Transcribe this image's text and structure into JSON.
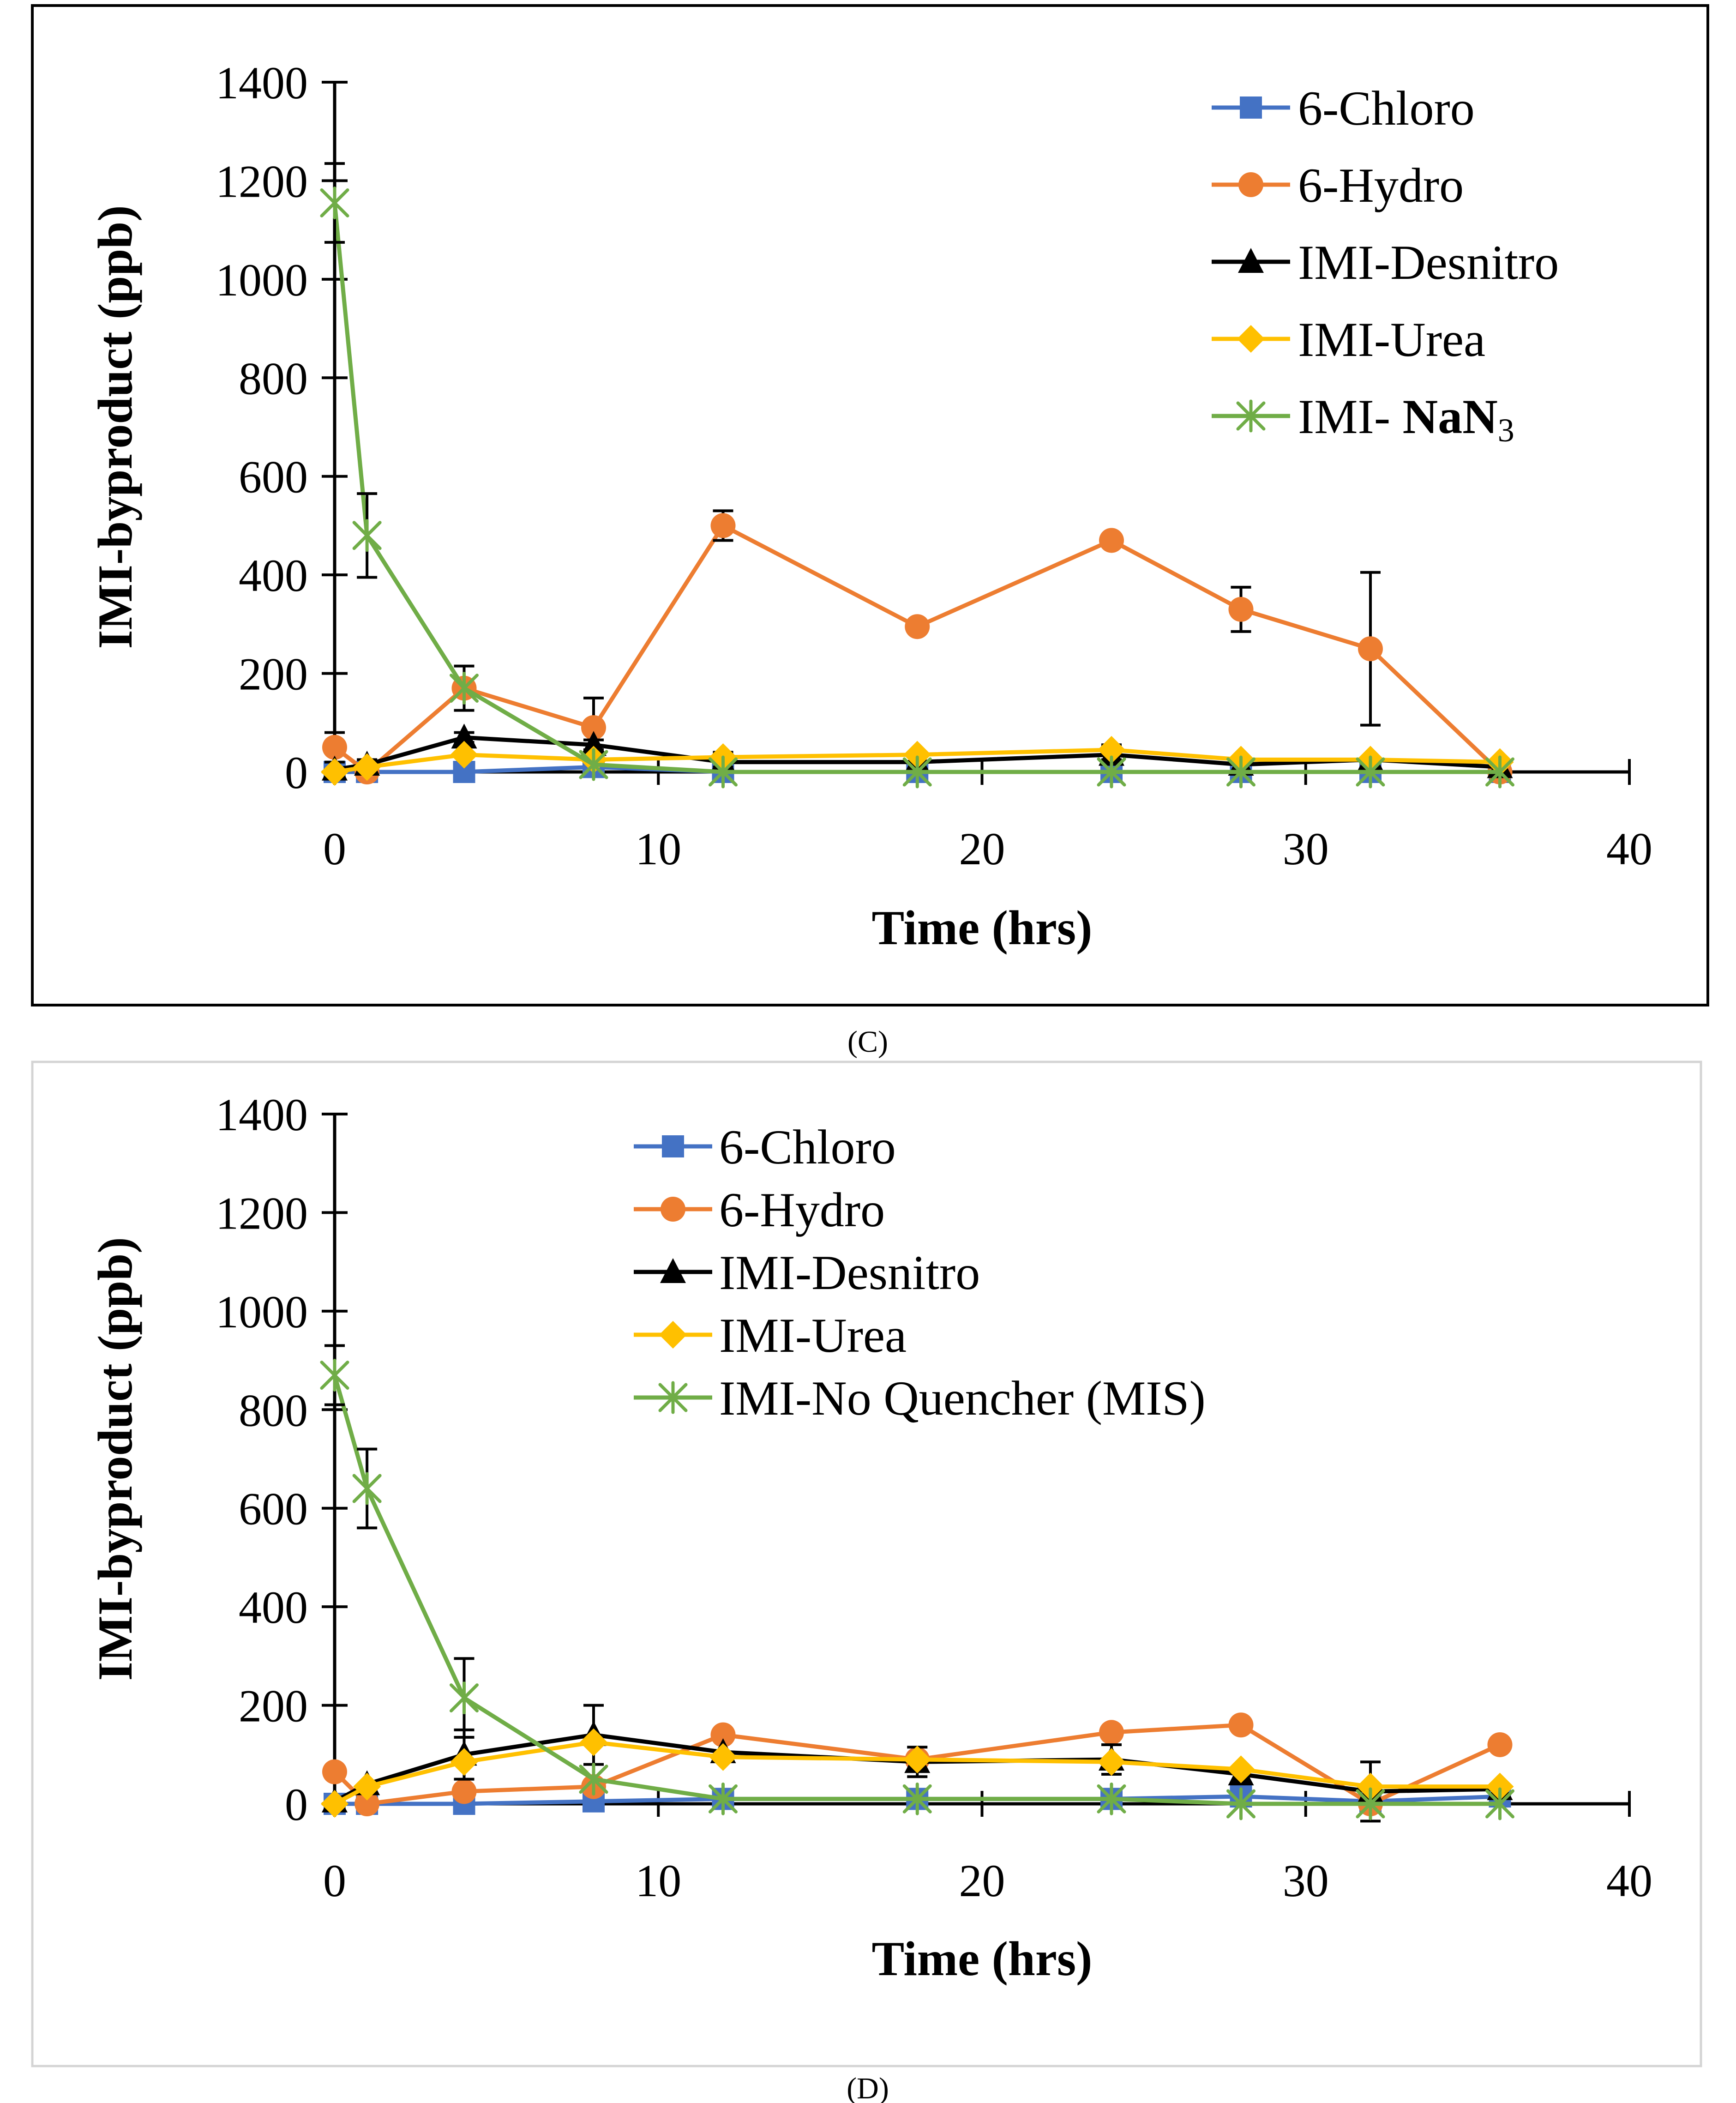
{
  "colors": {
    "6-Chloro": "#4472C4",
    "6-Hydro": "#ED7D31",
    "IMI-Desnitro": "#000000",
    "IMI-Urea": "#FFC000",
    "IMI-Quencher": "#70AD47",
    "error_bar": "#000000"
  },
  "chart_data": [
    {
      "type": "line",
      "panel_label": "(C)",
      "panel_letter": "C",
      "xlabel": "Time (hrs)",
      "ylabel": "IMI-byproduct (ppb)",
      "xlim": [
        0,
        40
      ],
      "ylim": [
        0,
        1400
      ],
      "xticks": [
        0,
        10,
        20,
        30,
        40
      ],
      "yticks": [
        0,
        200,
        400,
        600,
        800,
        1000,
        1200,
        1400
      ],
      "legend_position": "top-right",
      "x": [
        0,
        1,
        4,
        8,
        12,
        18,
        24,
        28,
        32,
        36
      ],
      "series": [
        {
          "name": "6-Chloro",
          "marker": "square",
          "color": "#4472C4",
          "values": [
            0,
            0,
            0,
            10,
            0,
            0,
            0,
            0,
            0,
            0
          ],
          "errors": [
            0,
            0,
            0,
            0,
            0,
            0,
            0,
            0,
            0,
            0
          ]
        },
        {
          "name": "6-Hydro",
          "marker": "circle",
          "color": "#ED7D31",
          "values": [
            50,
            0,
            170,
            90,
            500,
            295,
            470,
            330,
            250,
            0
          ],
          "errors": [
            30,
            0,
            45,
            60,
            30,
            0,
            0,
            45,
            155,
            0
          ]
        },
        {
          "name": "IMI-Desnitro",
          "marker": "triangle",
          "color": "#000000",
          "values": [
            5,
            15,
            70,
            55,
            20,
            20,
            35,
            15,
            25,
            10
          ],
          "errors": [
            0,
            10,
            10,
            10,
            10,
            0,
            10,
            0,
            0,
            0
          ]
        },
        {
          "name": "IMI-Urea",
          "marker": "diamond",
          "color": "#FFC000",
          "values": [
            0,
            10,
            35,
            25,
            30,
            35,
            45,
            25,
            25,
            20
          ],
          "errors": [
            0,
            0,
            0,
            0,
            10,
            0,
            10,
            0,
            0,
            0
          ]
        },
        {
          "name": "IMI- NaN3",
          "legend_prefix": "IMI- ",
          "legend_main": "NaN",
          "legend_sub": "3",
          "marker": "star",
          "color": "#70AD47",
          "values": [
            1155,
            480,
            170,
            15,
            0,
            0,
            0,
            0,
            0,
            0
          ],
          "errors": [
            80,
            85,
            0,
            0,
            0,
            0,
            0,
            0,
            0,
            0
          ]
        }
      ]
    },
    {
      "type": "line",
      "panel_label": "(D)",
      "panel_letter": "D",
      "xlabel": "Time (hrs)",
      "ylabel": "IMI-byproduct (ppb)",
      "xlim": [
        0,
        40
      ],
      "ylim": [
        0,
        1400
      ],
      "xticks": [
        0,
        10,
        20,
        30,
        40
      ],
      "yticks": [
        0,
        200,
        400,
        600,
        800,
        1000,
        1200,
        1400
      ],
      "legend_position": "top-center",
      "x": [
        0,
        1,
        4,
        8,
        12,
        18,
        24,
        28,
        32,
        36
      ],
      "series": [
        {
          "name": "6-Chloro",
          "marker": "square",
          "color": "#4472C4",
          "values": [
            0,
            0,
            0,
            5,
            10,
            10,
            10,
            15,
            5,
            15
          ],
          "errors": [
            0,
            0,
            0,
            0,
            0,
            0,
            0,
            0,
            0,
            0
          ]
        },
        {
          "name": "6-Hydro",
          "marker": "circle",
          "color": "#ED7D31",
          "values": [
            65,
            0,
            25,
            35,
            140,
            90,
            145,
            160,
            0,
            120
          ],
          "errors": [
            0,
            0,
            0,
            0,
            0,
            0,
            0,
            0,
            0,
            0
          ]
        },
        {
          "name": "IMI-Desnitro",
          "marker": "triangle",
          "color": "#000000",
          "values": [
            5,
            40,
            100,
            140,
            105,
            85,
            90,
            60,
            25,
            30
          ],
          "errors": [
            0,
            0,
            50,
            60,
            0,
            30,
            30,
            0,
            60,
            0
          ]
        },
        {
          "name": "IMI-Urea",
          "marker": "diamond",
          "color": "#FFC000",
          "values": [
            0,
            35,
            85,
            125,
            95,
            90,
            85,
            70,
            35,
            35
          ],
          "errors": [
            0,
            0,
            0,
            0,
            0,
            0,
            0,
            0,
            0,
            0
          ]
        },
        {
          "name": "IMI-No Quencher (MIS)",
          "marker": "star",
          "color": "#70AD47",
          "values": [
            870,
            640,
            215,
            50,
            10,
            10,
            10,
            0,
            0,
            0
          ],
          "errors": [
            60,
            80,
            80,
            0,
            0,
            0,
            0,
            0,
            0,
            0
          ]
        }
      ]
    }
  ]
}
